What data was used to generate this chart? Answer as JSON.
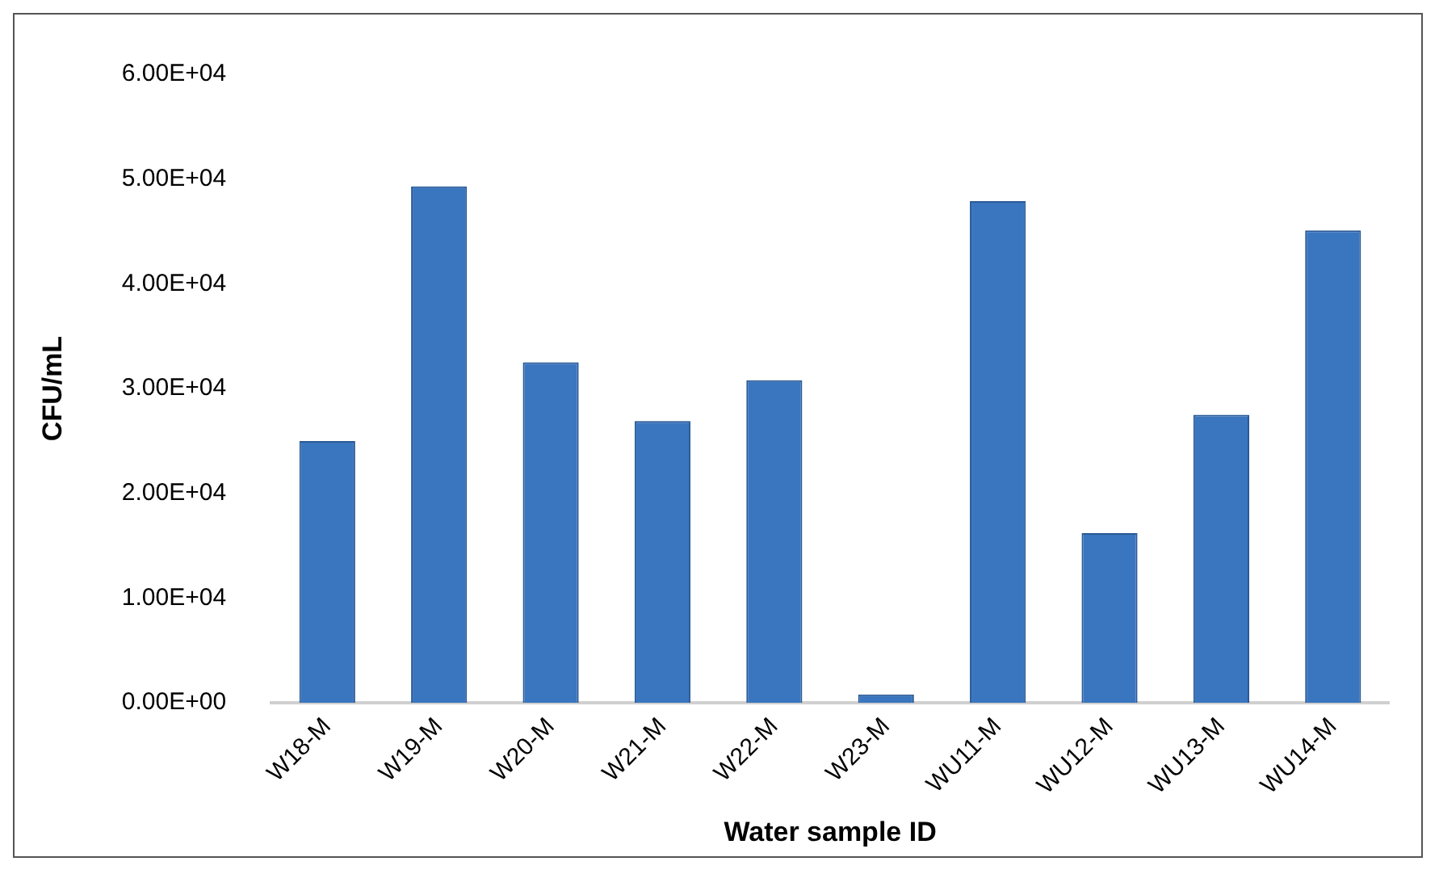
{
  "chart_data": {
    "type": "bar",
    "xlabel": "Water sample ID",
    "ylabel": "CFU/mL",
    "categories": [
      "W18-M",
      "W19-M",
      "W20-M",
      "W21-M",
      "W22-M",
      "W23-M",
      "WU11-M",
      "WU12-M",
      "WU13-M",
      "WU14-M"
    ],
    "values": [
      25000,
      49300,
      32500,
      26900,
      30800,
      800,
      47900,
      16200,
      27500,
      45100
    ],
    "color": "#3a75bf",
    "ylim": [
      0,
      60000
    ],
    "yticks": [
      {
        "value": 0,
        "label": "0.00E+00"
      },
      {
        "value": 10000,
        "label": "1.00E+04"
      },
      {
        "value": 20000,
        "label": "2.00E+04"
      },
      {
        "value": 30000,
        "label": "3.00E+04"
      },
      {
        "value": 40000,
        "label": "4.00E+04"
      },
      {
        "value": 50000,
        "label": "5.00E+04"
      },
      {
        "value": 60000,
        "label": "6.00E+04"
      }
    ],
    "grid": false,
    "legend": false
  }
}
